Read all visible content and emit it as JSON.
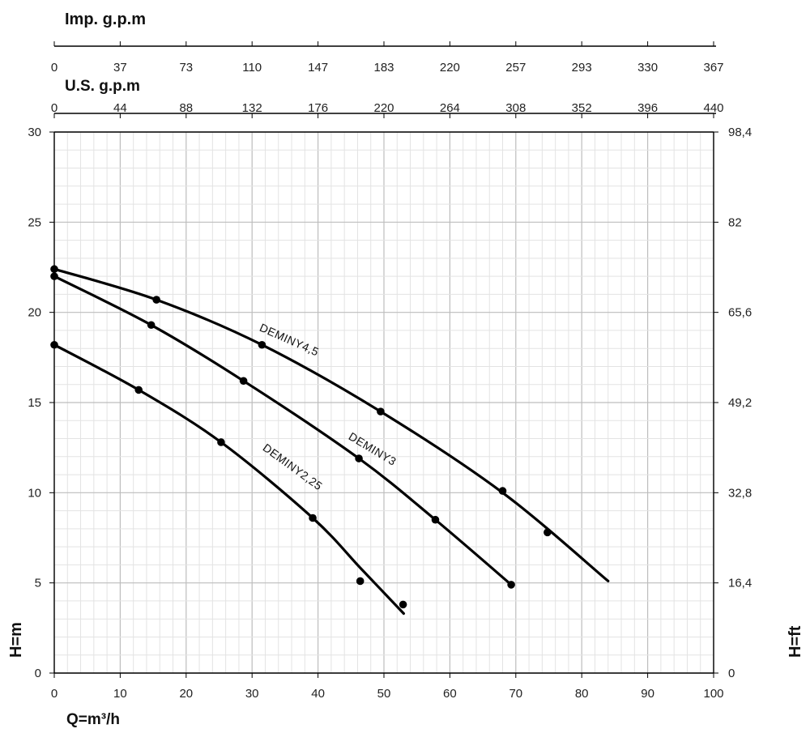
{
  "chart_data": {
    "type": "line",
    "x_label": "Q=m³/h",
    "y_left_label": "H=m",
    "y_right_label": "H=ft",
    "top_axis_1_label": "Imp. g.p.m",
    "top_axis_2_label": "U.S. g.p.m",
    "xlim": [
      0,
      100
    ],
    "ylim": [
      0,
      30
    ],
    "grid": true,
    "x_ticks": [
      "0",
      "10",
      "20",
      "30",
      "40",
      "50",
      "60",
      "70",
      "80",
      "90",
      "100"
    ],
    "y_left_ticks": [
      "0",
      "5",
      "10",
      "15",
      "20",
      "25",
      "30"
    ],
    "y_right_ticks": [
      "0",
      "16,4",
      "32,8",
      "49,2",
      "65,6",
      "82",
      "98,4"
    ],
    "imp_gpm_ticks": [
      "0",
      "37",
      "73",
      "110",
      "147",
      "183",
      "220",
      "257",
      "293",
      "330",
      "367"
    ],
    "us_gpm_ticks": [
      "0",
      "44",
      "88",
      "132",
      "176",
      "220",
      "264",
      "308",
      "352",
      "396",
      "440"
    ],
    "series": [
      {
        "name": "DEMINY4,5",
        "curve": [
          [
            0,
            22.4
          ],
          [
            15.5,
            20.7
          ],
          [
            31.5,
            18.2
          ],
          [
            49.5,
            14.5
          ],
          [
            68,
            10.0
          ],
          [
            84,
            5.1
          ]
        ],
        "points": [
          [
            0,
            22.4
          ],
          [
            15.5,
            20.7
          ],
          [
            31.5,
            18.2
          ],
          [
            49.5,
            14.5
          ],
          [
            68,
            10.1
          ],
          [
            74.8,
            7.8
          ]
        ]
      },
      {
        "name": "DEMINY3",
        "curve": [
          [
            0,
            22.0
          ],
          [
            14.7,
            19.3
          ],
          [
            28.7,
            16.2
          ],
          [
            46.2,
            11.9
          ],
          [
            57.8,
            8.5
          ],
          [
            69.3,
            4.9
          ]
        ],
        "points": [
          [
            0,
            22.0
          ],
          [
            14.7,
            19.3
          ],
          [
            28.7,
            16.2
          ],
          [
            46.2,
            11.9
          ],
          [
            57.8,
            8.5
          ],
          [
            69.3,
            4.9
          ]
        ]
      },
      {
        "name": "DEMINY2,25",
        "curve": [
          [
            0,
            18.2
          ],
          [
            12.8,
            15.7
          ],
          [
            25.3,
            12.8
          ],
          [
            39.2,
            8.6
          ],
          [
            46.5,
            5.8
          ],
          [
            53.0,
            3.3
          ]
        ],
        "points": [
          [
            0,
            18.2
          ],
          [
            12.8,
            15.7
          ],
          [
            25.3,
            12.8
          ],
          [
            39.2,
            8.6
          ],
          [
            46.4,
            5.1
          ],
          [
            52.9,
            3.8
          ]
        ]
      }
    ]
  }
}
